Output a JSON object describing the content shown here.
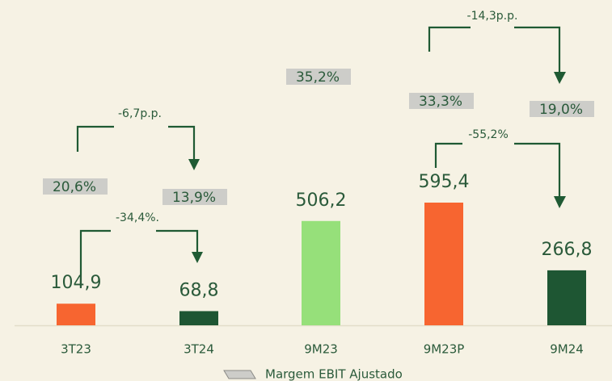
{
  "chart_data": {
    "type": "bar",
    "categories": [
      "3T23",
      "3T24",
      "9M23",
      "9M23P",
      "9M24"
    ],
    "values": [
      104.9,
      68.8,
      506.2,
      595.4,
      266.8
    ],
    "value_labels": [
      "104,9",
      "68,8",
      "506,2",
      "595,4",
      "266,8"
    ],
    "colors": [
      "#f76530",
      "#1e5633",
      "#96e07a",
      "#f76530",
      "#1e5633"
    ],
    "margins": {
      "name": "Margem EBIT Ajustado",
      "color": "#cdcdc9",
      "values": [
        20.6,
        13.9,
        35.2,
        33.3,
        19.0
      ],
      "value_labels": [
        "20,6%",
        "13,9%",
        "35,2%",
        "33,3%",
        "19,0%"
      ]
    },
    "annotations": [
      "-6,7p.p.",
      "-34,4%.",
      "-14,3p.p.",
      "-55,2%"
    ]
  }
}
